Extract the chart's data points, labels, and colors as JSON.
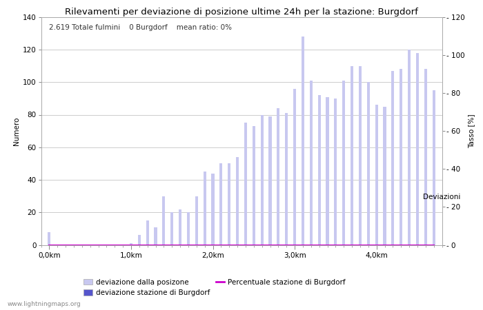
{
  "title": "Rilevamenti per deviazione di posizione ultime 24h per la stazione: Burgdorf",
  "subtitle": "2.619 Totale fulmini    0 Burgdorf    mean ratio: 0%",
  "xlabel": "Deviazioni",
  "ylabel_left": "Numero",
  "ylabel_right": "Tasso [%]",
  "watermark": "www.lightningmaps.org",
  "legend": {
    "label1": "deviazione dalla posizone",
    "label2": "deviazione stazione di Burgdorf",
    "label3": "Percentuale stazione di Burgdorf"
  },
  "x_tick_labels": [
    "0,0km",
    "1,0km",
    "2,0km",
    "3,0km",
    "4,0km"
  ],
  "x_tick_positions": [
    0,
    10,
    20,
    30,
    40
  ],
  "bar_width": 0.35,
  "ylim_left": [
    0,
    140
  ],
  "ylim_right": [
    0,
    120
  ],
  "yticks_left": [
    0,
    20,
    40,
    60,
    80,
    100,
    120,
    140
  ],
  "yticks_right": [
    0,
    20,
    40,
    60,
    80,
    100,
    120
  ],
  "bar_values": [
    8,
    0,
    0,
    0,
    0,
    0,
    0,
    0,
    0,
    0,
    1,
    6,
    15,
    11,
    30,
    20,
    22,
    20,
    30,
    45,
    44,
    50,
    50,
    54,
    75,
    73,
    80,
    79,
    84,
    81,
    96,
    128,
    101,
    92,
    91,
    90,
    101,
    110,
    110,
    100,
    86,
    85,
    107,
    108,
    120,
    118,
    108,
    95
  ],
  "bar2_values": [
    0,
    0,
    0,
    0,
    0,
    0,
    0,
    0,
    0,
    0,
    0,
    0,
    0,
    0,
    0,
    0,
    0,
    0,
    0,
    0,
    0,
    0,
    0,
    0,
    0,
    0,
    0,
    0,
    0,
    0,
    0,
    0,
    0,
    0,
    0,
    0,
    0,
    0,
    0,
    0,
    0,
    0,
    0,
    0,
    0,
    0,
    0,
    0
  ],
  "ratio_values": [
    0,
    0,
    0,
    0,
    0,
    0,
    0,
    0,
    0,
    0,
    0,
    0,
    0,
    0,
    0,
    0,
    0,
    0,
    0,
    0,
    0,
    0,
    0,
    0,
    0,
    0,
    0,
    0,
    0,
    0,
    0,
    0,
    0,
    0,
    0,
    0,
    0,
    0,
    0,
    0,
    0,
    0,
    0,
    0,
    0,
    0,
    0,
    0
  ],
  "color_bar1": "#c8c8f0",
  "color_bar2": "#5555cc",
  "color_ratio": "#cc00cc",
  "bg_color": "#ffffff",
  "grid_color": "#cccccc",
  "title_fontsize": 9.5,
  "subtitle_fontsize": 7.5,
  "axis_fontsize": 7.5,
  "tick_fontsize": 7.5
}
